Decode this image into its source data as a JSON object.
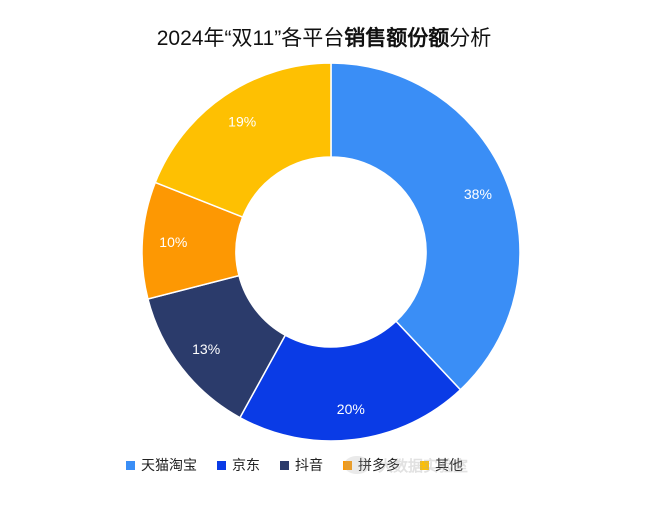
{
  "title": {
    "prefix": "2024年“双11”各平台",
    "bold": "销售额份额",
    "suffix": "分析"
  },
  "chart_data": {
    "type": "pie",
    "donut": true,
    "start": "12 o'clock, clockwise",
    "legend_position": "bottom",
    "slices": [
      {
        "name": "天猫淘宝",
        "value": 38,
        "label": "38%",
        "color": "#3a8ef6"
      },
      {
        "name": "京东",
        "value": 20,
        "label": "20%",
        "color": "#0a3be6"
      },
      {
        "name": "抖音",
        "value": 13,
        "label": "13%",
        "color": "#2b3b6b"
      },
      {
        "name": "拼多多",
        "value": 10,
        "label": "10%",
        "color": "#fd9803"
      },
      {
        "name": "其他",
        "value": 19,
        "label": "19%",
        "color": "#fec002"
      }
    ]
  },
  "watermark": {
    "text": "大数据实验室"
  }
}
